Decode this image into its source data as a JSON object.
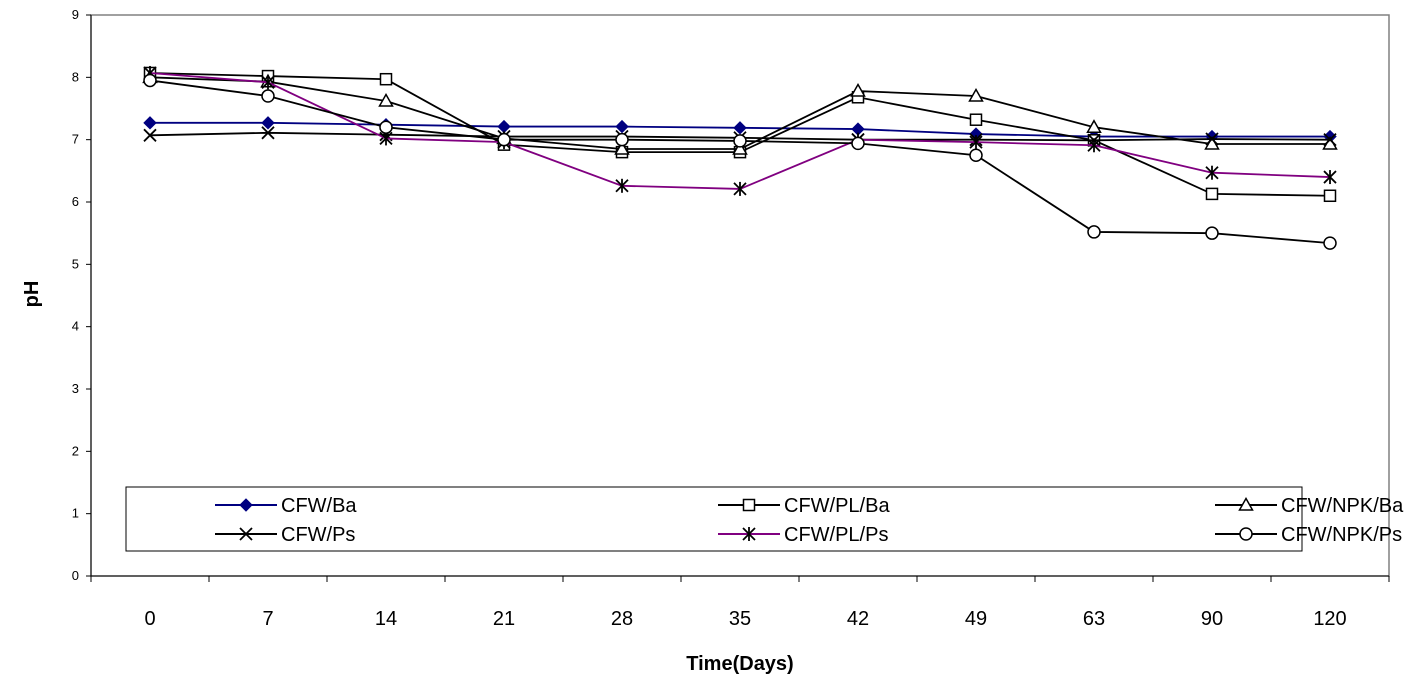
{
  "chart_data": {
    "type": "line",
    "title": "",
    "xlabel": "Time(Days)",
    "ylabel": "pH",
    "ylim": [
      0,
      9
    ],
    "yticks": [
      0,
      1,
      2,
      3,
      4,
      5,
      6,
      7,
      8,
      9
    ],
    "categories": [
      "0",
      "7",
      "14",
      "21",
      "28",
      "35",
      "42",
      "49",
      "63",
      "90",
      "120"
    ],
    "grid": false,
    "legend_position": "inside-bottom",
    "series": [
      {
        "name": "CFW/Ba",
        "color": "#000080",
        "marker": "diamond-filled",
        "values": [
          7.27,
          7.27,
          7.24,
          7.21,
          7.21,
          7.19,
          7.17,
          7.09,
          7.05,
          7.05,
          7.05
        ]
      },
      {
        "name": "CFW/PL/Ba",
        "color": "#000000",
        "marker": "square-open",
        "values": [
          8.07,
          8.02,
          7.97,
          6.92,
          6.8,
          6.8,
          7.68,
          7.32,
          6.99,
          6.13,
          6.1
        ]
      },
      {
        "name": "CFW/NPK/Ba",
        "color": "#000000",
        "marker": "triangle-open",
        "values": [
          8.0,
          7.93,
          7.62,
          7.02,
          6.85,
          6.85,
          7.78,
          7.7,
          7.2,
          6.93,
          6.93
        ]
      },
      {
        "name": "CFW/Ps",
        "color": "#000000",
        "marker": "x",
        "values": [
          7.07,
          7.11,
          7.08,
          7.05,
          7.05,
          7.03,
          7.0,
          7.0,
          6.99,
          7.01,
          7.0
        ]
      },
      {
        "name": "CFW/PL/Ps",
        "color": "#800080",
        "marker": "asterisk",
        "values": [
          8.07,
          7.92,
          7.02,
          6.96,
          6.26,
          6.21,
          7.0,
          6.96,
          6.91,
          6.47,
          6.4
        ]
      },
      {
        "name": "CFW/NPK/Ps",
        "color": "#000000",
        "marker": "circle-open",
        "values": [
          7.95,
          7.7,
          7.2,
          7.0,
          7.0,
          6.98,
          6.94,
          6.75,
          5.52,
          5.5,
          5.34
        ]
      }
    ]
  }
}
